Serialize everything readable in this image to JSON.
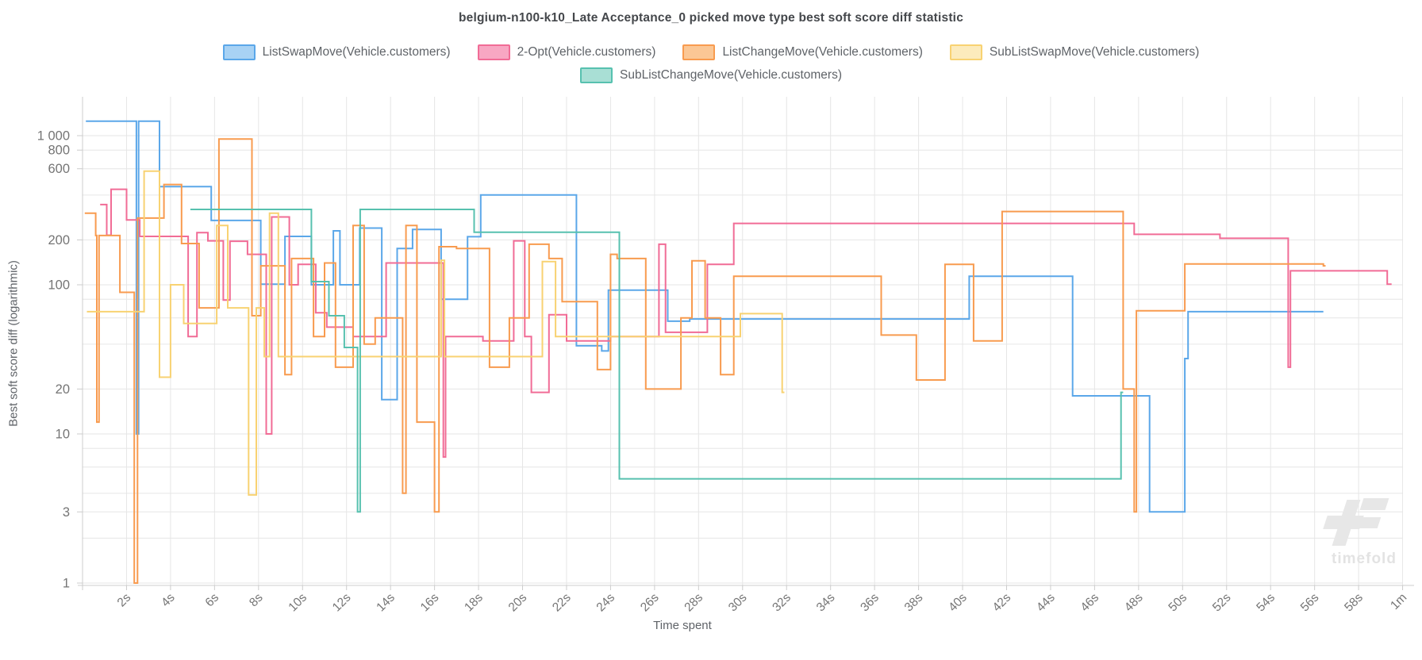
{
  "chart_data": {
    "type": "line",
    "step": "after",
    "title": "belgium-n100-k10_Late Acceptance_0 picked move type best soft score diff statistic",
    "xlabel": "Time spent",
    "ylabel": "Best soft score diff (logarithmic)",
    "x_range_seconds": [
      0,
      60
    ],
    "x_tick_interval_seconds": 2,
    "x_tick_labels": [
      "2s",
      "4s",
      "6s",
      "8s",
      "10s",
      "12s",
      "14s",
      "16s",
      "18s",
      "20s",
      "22s",
      "24s",
      "26s",
      "28s",
      "30s",
      "32s",
      "34s",
      "36s",
      "38s",
      "40s",
      "42s",
      "44s",
      "46s",
      "48s",
      "50s",
      "52s",
      "54s",
      "56s",
      "58s",
      "1m"
    ],
    "y_scale": "logarithmic",
    "y_range": [
      1,
      1300
    ],
    "y_gridline_values": [
      1,
      2,
      3,
      4,
      6,
      8,
      10,
      20,
      40,
      60,
      80,
      100,
      200,
      400,
      600,
      800,
      1000
    ],
    "y_tick_labels": [
      {
        "value": 1000,
        "label": "1 000"
      },
      {
        "value": 800,
        "label": "800"
      },
      {
        "value": 600,
        "label": "600"
      },
      {
        "value": 200,
        "label": "200"
      },
      {
        "value": 100,
        "label": "100"
      },
      {
        "value": 20,
        "label": "20"
      },
      {
        "value": 10,
        "label": "10"
      },
      {
        "value": 3,
        "label": "3"
      },
      {
        "value": 1,
        "label": "1"
      }
    ],
    "legend_position": "top",
    "grid": true,
    "series": [
      {
        "name": "ListSwapMove(Vehicle.customers)",
        "color": "#5BA7E9",
        "legend_fill": "#A8D2F4",
        "points": [
          [
            0.15,
            1250
          ],
          [
            2.45,
            10
          ],
          [
            2.55,
            1250
          ],
          [
            3.5,
            455
          ],
          [
            5.85,
            270
          ],
          [
            8.1,
            101
          ],
          [
            9.2,
            211
          ],
          [
            10.4,
            100
          ],
          [
            11.4,
            230
          ],
          [
            11.7,
            100
          ],
          [
            12.6,
            240
          ],
          [
            13.6,
            17
          ],
          [
            14.3,
            175
          ],
          [
            15.0,
            235
          ],
          [
            16.3,
            80
          ],
          [
            17.5,
            210
          ],
          [
            18.1,
            400
          ],
          [
            22.45,
            39
          ],
          [
            23.6,
            36
          ],
          [
            23.9,
            92
          ],
          [
            26.6,
            57
          ],
          [
            27.6,
            59
          ],
          [
            40.3,
            114
          ],
          [
            45.0,
            18
          ],
          [
            48.5,
            3
          ],
          [
            50.1,
            32
          ],
          [
            50.25,
            66
          ],
          [
            56.4,
            66
          ]
        ]
      },
      {
        "name": "2-Opt(Vehicle.customers)",
        "color": "#F16C96",
        "legend_fill": "#F8A7C3",
        "points": [
          [
            0.8,
            345
          ],
          [
            1.1,
            215
          ],
          [
            1.3,
            437
          ],
          [
            2.0,
            272
          ],
          [
            2.6,
            211
          ],
          [
            4.8,
            45
          ],
          [
            5.2,
            224
          ],
          [
            5.7,
            197
          ],
          [
            6.4,
            79
          ],
          [
            6.7,
            196
          ],
          [
            7.5,
            160
          ],
          [
            8.35,
            10
          ],
          [
            8.6,
            285
          ],
          [
            9.4,
            100
          ],
          [
            9.8,
            137
          ],
          [
            10.6,
            65
          ],
          [
            11.1,
            52
          ],
          [
            12.3,
            45
          ],
          [
            13.8,
            140
          ],
          [
            16.4,
            7
          ],
          [
            16.5,
            45
          ],
          [
            18.2,
            42
          ],
          [
            19.6,
            197
          ],
          [
            20.1,
            45
          ],
          [
            20.4,
            19
          ],
          [
            21.2,
            63
          ],
          [
            22.0,
            42
          ],
          [
            24.0,
            45
          ],
          [
            26.2,
            187
          ],
          [
            26.5,
            48
          ],
          [
            28.4,
            137
          ],
          [
            29.6,
            258
          ],
          [
            47.8,
            218
          ],
          [
            51.7,
            205
          ],
          [
            54.8,
            28
          ],
          [
            54.9,
            124
          ],
          [
            59.3,
            101
          ],
          [
            59.5,
            101
          ]
        ]
      },
      {
        "name": "ListChangeMove(Vehicle.customers)",
        "color": "#F89B4F",
        "legend_fill": "#FBC795",
        "points": [
          [
            0.1,
            302
          ],
          [
            0.6,
            214
          ],
          [
            0.65,
            12
          ],
          [
            0.75,
            214
          ],
          [
            1.7,
            89
          ],
          [
            2.35,
            1
          ],
          [
            2.5,
            280
          ],
          [
            3.7,
            470
          ],
          [
            4.5,
            189
          ],
          [
            5.3,
            70
          ],
          [
            6.2,
            950
          ],
          [
            7.7,
            62
          ],
          [
            8.1,
            134
          ],
          [
            9.2,
            25
          ],
          [
            9.5,
            150
          ],
          [
            10.5,
            45
          ],
          [
            11.0,
            140
          ],
          [
            11.5,
            28
          ],
          [
            12.3,
            250
          ],
          [
            12.8,
            40
          ],
          [
            13.3,
            60
          ],
          [
            14.55,
            4
          ],
          [
            14.7,
            250
          ],
          [
            15.2,
            12
          ],
          [
            16.0,
            3
          ],
          [
            16.2,
            180
          ],
          [
            17.0,
            175
          ],
          [
            18.5,
            28
          ],
          [
            19.4,
            60
          ],
          [
            20.3,
            187
          ],
          [
            21.2,
            150
          ],
          [
            21.8,
            77
          ],
          [
            23.4,
            27
          ],
          [
            24.0,
            160
          ],
          [
            24.3,
            150
          ],
          [
            25.6,
            20
          ],
          [
            27.2,
            60
          ],
          [
            27.7,
            145
          ],
          [
            28.3,
            60
          ],
          [
            29.0,
            25
          ],
          [
            29.6,
            114
          ],
          [
            36.3,
            46
          ],
          [
            37.9,
            23
          ],
          [
            39.2,
            137
          ],
          [
            40.5,
            42
          ],
          [
            41.8,
            310
          ],
          [
            47.3,
            20
          ],
          [
            47.8,
            3
          ],
          [
            47.9,
            67
          ],
          [
            50.1,
            138
          ],
          [
            56.4,
            134
          ],
          [
            56.5,
            134
          ]
        ]
      },
      {
        "name": "SubListSwapMove(Vehicle.customers)",
        "color": "#F8D272",
        "legend_fill": "#FCEBBC",
        "points": [
          [
            0.2,
            66
          ],
          [
            2.8,
            578
          ],
          [
            3.5,
            24
          ],
          [
            4.0,
            100
          ],
          [
            4.6,
            55
          ],
          [
            6.1,
            250
          ],
          [
            6.6,
            70
          ],
          [
            7.55,
            3.9
          ],
          [
            7.9,
            70
          ],
          [
            8.26,
            33
          ],
          [
            8.5,
            302
          ],
          [
            8.9,
            33
          ],
          [
            16.3,
            146
          ],
          [
            16.45,
            33
          ],
          [
            20.9,
            143
          ],
          [
            21.5,
            45
          ],
          [
            29.9,
            64
          ],
          [
            31.8,
            19
          ],
          [
            31.9,
            19
          ]
        ]
      },
      {
        "name": "SubListChangeMove(Vehicle.customers)",
        "color": "#57C1AF",
        "legend_fill": "#A9DFD5",
        "points": [
          [
            4.9,
            320
          ],
          [
            10.4,
            105
          ],
          [
            11.2,
            62
          ],
          [
            11.9,
            38
          ],
          [
            12.5,
            3
          ],
          [
            12.62,
            320
          ],
          [
            17.8,
            225
          ],
          [
            24.4,
            5
          ],
          [
            47.2,
            19
          ],
          [
            47.3,
            19
          ]
        ]
      }
    ]
  },
  "watermark": {
    "text": "timefold"
  },
  "style": {
    "grid_color": "#e6e6e6",
    "axis_color": "#cccccc",
    "tick_text_color": "#757575"
  }
}
